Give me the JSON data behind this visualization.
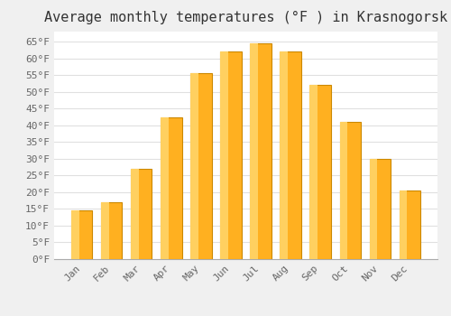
{
  "title": "Average monthly temperatures (°F ) in Krasnogorsk",
  "months": [
    "Jan",
    "Feb",
    "Mar",
    "Apr",
    "May",
    "Jun",
    "Jul",
    "Aug",
    "Sep",
    "Oct",
    "Nov",
    "Dec"
  ],
  "values": [
    14.5,
    17.0,
    27.0,
    42.5,
    55.5,
    62.0,
    64.5,
    62.0,
    52.0,
    41.0,
    30.0,
    20.5
  ],
  "bar_color_main": "#FFB020",
  "bar_color_left": "#FFD060",
  "bar_edge_color": "#CC8800",
  "ylim": [
    0,
    68
  ],
  "yticks": [
    0,
    5,
    10,
    15,
    20,
    25,
    30,
    35,
    40,
    45,
    50,
    55,
    60,
    65
  ],
  "ytick_labels": [
    "0°F",
    "5°F",
    "10°F",
    "15°F",
    "20°F",
    "25°F",
    "30°F",
    "35°F",
    "40°F",
    "45°F",
    "50°F",
    "55°F",
    "60°F",
    "65°F"
  ],
  "background_color": "#f0f0f0",
  "plot_bg_color": "#ffffff",
  "grid_color": "#e0e0e0",
  "title_fontsize": 11,
  "tick_fontsize": 8,
  "title_color": "#333333",
  "tick_color": "#666666",
  "bar_width": 0.7
}
